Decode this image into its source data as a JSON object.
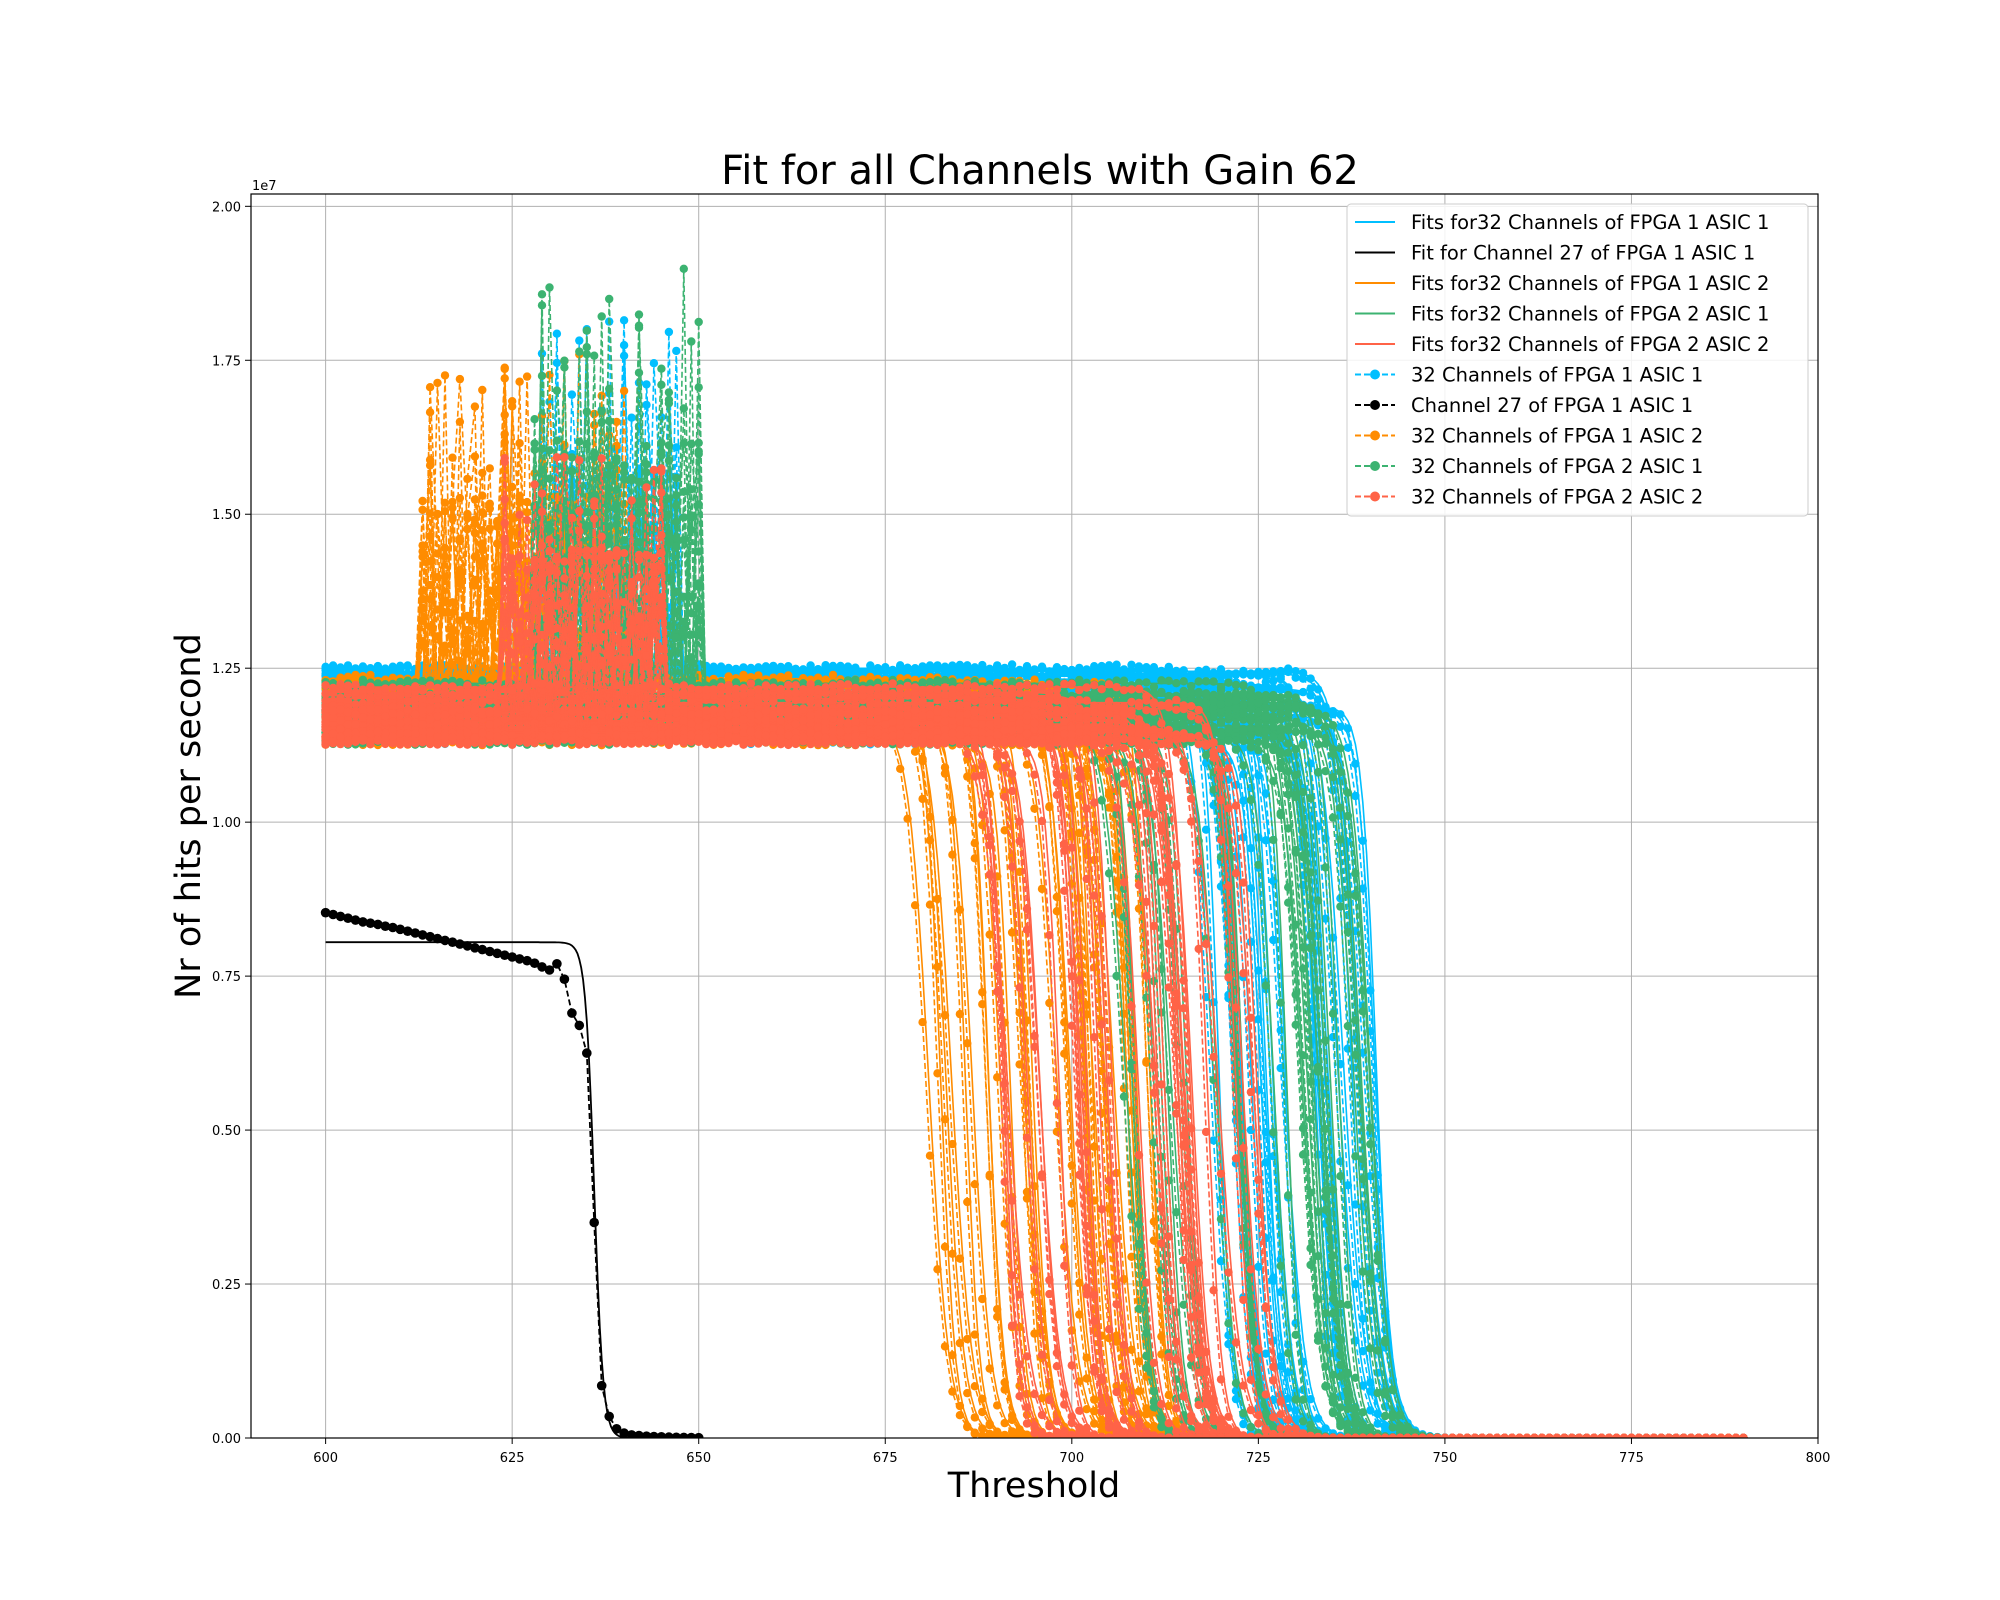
{
  "chart_data": {
    "type": "line",
    "title": "Fit for all Channels with Gain 62",
    "xlabel": "Threshold",
    "ylabel": "Nr of hits per second",
    "y_offset_label": "1e7",
    "xlim": [
      590,
      800
    ],
    "ylim": [
      0,
      20200000
    ],
    "x_ticks": [
      600,
      625,
      650,
      675,
      700,
      725,
      750,
      775,
      800
    ],
    "x_tick_labels": [
      "600",
      "625",
      "650",
      "675",
      "700",
      "725",
      "750",
      "775",
      "800"
    ],
    "y_ticks": [
      0,
      2500000,
      5000000,
      7500000,
      10000000,
      12500000,
      15000000,
      17500000,
      20000000
    ],
    "y_tick_labels": [
      "0.00",
      "0.25",
      "0.50",
      "0.75",
      "1.00",
      "1.25",
      "1.50",
      "1.75",
      "2.00"
    ],
    "grid": true,
    "legend_position": "top-right",
    "colors": {
      "fpga1_asic1": "#00bfff",
      "channel27": "#000000",
      "fpga1_asic2": "#ff8c00",
      "fpga2_asic1": "#3cb371",
      "fpga2_asic2": "#ff6347"
    },
    "legend": [
      {
        "label": "Fits for32 Channels of FPGA 1 ASIC 1",
        "color": "#00bfff",
        "style": "solid"
      },
      {
        "label": "Fit for Channel 27 of FPGA 1 ASIC 1",
        "color": "#000000",
        "style": "solid"
      },
      {
        "label": "Fits for32 Channels of FPGA 1 ASIC 2",
        "color": "#ff8c00",
        "style": "solid"
      },
      {
        "label": "Fits for32 Channels of FPGA 2 ASIC 1",
        "color": "#3cb371",
        "style": "solid"
      },
      {
        "label": "Fits for32 Channels of FPGA 2 ASIC 2",
        "color": "#ff6347",
        "style": "solid"
      },
      {
        "label": "32 Channels of FPGA 1 ASIC 1",
        "color": "#00bfff",
        "style": "dashed-marker"
      },
      {
        "label": "Channel 27 of FPGA 1 ASIC 1",
        "color": "#000000",
        "style": "dashed-marker"
      },
      {
        "label": "32 Channels of FPGA 1 ASIC 2",
        "color": "#ff8c00",
        "style": "dashed-marker"
      },
      {
        "label": "32 Channels of FPGA 2 ASIC 1",
        "color": "#3cb371",
        "style": "dashed-marker"
      },
      {
        "label": "32 Channels of FPGA 2 ASIC 2",
        "color": "#ff6347",
        "style": "dashed-marker"
      }
    ],
    "series": [
      {
        "group": "fpga1_asic1",
        "channels": 32,
        "plateau_range": [
          11300000,
          12500000
        ],
        "midpoint_range": [
          718,
          742
        ],
        "x_range": [
          600,
          790
        ],
        "spike_range": [
          629,
          647
        ],
        "spike_max": 18400000
      },
      {
        "group": "fpga1_asic2",
        "channels": 32,
        "plateau_range": [
          11300000,
          12400000
        ],
        "midpoint_range": [
          680,
          712
        ],
        "x_range": [
          600,
          790
        ],
        "spike_range": [
          613,
          640
        ],
        "spike_max": 17600000
      },
      {
        "group": "fpga2_asic1",
        "channels": 32,
        "plateau_range": [
          11300000,
          12300000
        ],
        "midpoint_range": [
          705,
          740
        ],
        "x_range": [
          600,
          790
        ],
        "spike_range": [
          628,
          650
        ],
        "spike_max": 19200000
      },
      {
        "group": "fpga2_asic2",
        "channels": 32,
        "plateau_range": [
          11300000,
          12200000
        ],
        "midpoint_range": [
          690,
          725
        ],
        "x_range": [
          600,
          790
        ],
        "spike_range": [
          624,
          645
        ],
        "spike_max": 16000000
      }
    ],
    "channel27_fit": {
      "plateau": 8050000,
      "midpoint": 636,
      "x_range": [
        600,
        650
      ]
    },
    "channel27_data": {
      "x": [
        600,
        601,
        602,
        603,
        604,
        605,
        606,
        607,
        608,
        609,
        610,
        611,
        612,
        613,
        614,
        615,
        616,
        617,
        618,
        619,
        620,
        621,
        622,
        623,
        624,
        625,
        626,
        627,
        628,
        629,
        630,
        631,
        632,
        633,
        634,
        635,
        636,
        637,
        638,
        639,
        640,
        641,
        642,
        643,
        644,
        645,
        646,
        647,
        648,
        649,
        650
      ],
      "y": [
        8530000,
        8500000,
        8470000,
        8440000,
        8410000,
        8380000,
        8360000,
        8340000,
        8310000,
        8290000,
        8260000,
        8230000,
        8200000,
        8170000,
        8140000,
        8110000,
        8080000,
        8050000,
        8020000,
        7990000,
        7960000,
        7930000,
        7900000,
        7870000,
        7840000,
        7810000,
        7780000,
        7750000,
        7710000,
        7650000,
        7600000,
        7700000,
        7450000,
        6900000,
        6700000,
        6250000,
        3500000,
        850000,
        350000,
        150000,
        80000,
        50000,
        40000,
        30000,
        25000,
        20000,
        15000,
        12000,
        10000,
        8000,
        5000
      ]
    }
  }
}
